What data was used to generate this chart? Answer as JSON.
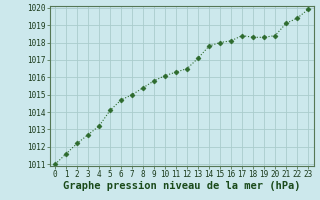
{
  "x": [
    0,
    1,
    2,
    3,
    4,
    5,
    6,
    7,
    8,
    9,
    10,
    11,
    12,
    13,
    14,
    15,
    16,
    17,
    18,
    19,
    20,
    21,
    22,
    23
  ],
  "y": [
    1011.0,
    1011.6,
    1012.2,
    1012.7,
    1013.2,
    1014.1,
    1014.7,
    1015.0,
    1015.4,
    1015.8,
    1016.1,
    1016.3,
    1016.5,
    1017.1,
    1017.8,
    1018.0,
    1018.1,
    1018.4,
    1018.3,
    1018.3,
    1018.4,
    1019.1,
    1019.4,
    1019.9
  ],
  "line_color": "#2d6a2d",
  "marker": "D",
  "marker_size": 2.5,
  "bg_color": "#cce8ec",
  "grid_color": "#aacccc",
  "xlabel": "Graphe pression niveau de la mer (hPa)",
  "xlabel_fontsize": 7.5,
  "xlabel_color": "#1a4a1a",
  "tick_label_color": "#1a3a1a",
  "ylim": [
    1011,
    1020
  ],
  "xlim": [
    -0.5,
    23.5
  ],
  "yticks": [
    1011,
    1012,
    1013,
    1014,
    1015,
    1016,
    1017,
    1018,
    1019,
    1020
  ],
  "xticks": [
    0,
    1,
    2,
    3,
    4,
    5,
    6,
    7,
    8,
    9,
    10,
    11,
    12,
    13,
    14,
    15,
    16,
    17,
    18,
    19,
    20,
    21,
    22,
    23
  ]
}
